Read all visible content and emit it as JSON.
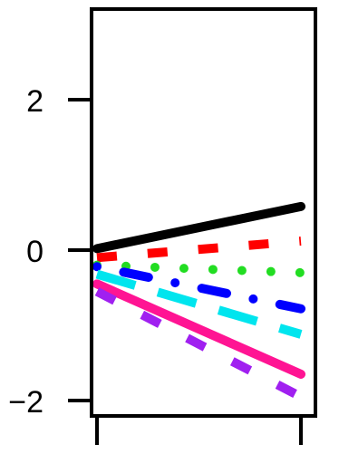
{
  "chart_data": {
    "type": "line",
    "title": "",
    "xlabel": "",
    "ylabel": "",
    "x": [
      0,
      1
    ],
    "xlim": [
      0,
      1
    ],
    "ylim": [
      -2.05,
      3.2
    ],
    "y_ticks": [
      -2,
      0,
      2
    ],
    "y_tick_labels": [
      "−2",
      "0",
      "2"
    ],
    "x_tick_count": 2,
    "grid": false,
    "legend": "none",
    "series": [
      {
        "values": [
          0.02,
          0.58
        ],
        "color": "#000000",
        "dash": "solid"
      },
      {
        "values": [
          -0.1,
          0.12
        ],
        "color": "#ff0000",
        "dash": "dashed"
      },
      {
        "values": [
          -0.2,
          -0.3
        ],
        "color": "#22dd22",
        "dash": "dotted"
      },
      {
        "values": [
          -0.22,
          -0.78
        ],
        "color": "#0000ff",
        "dash": "dotdash"
      },
      {
        "values": [
          -0.32,
          -1.12
        ],
        "color": "#00e5ee",
        "dash": "longdash"
      },
      {
        "values": [
          -0.45,
          -1.65
        ],
        "color": "#ff1493",
        "dash": "solid"
      },
      {
        "values": [
          -0.55,
          -1.95
        ],
        "color": "#a020f0",
        "dash": "dashed"
      }
    ]
  }
}
